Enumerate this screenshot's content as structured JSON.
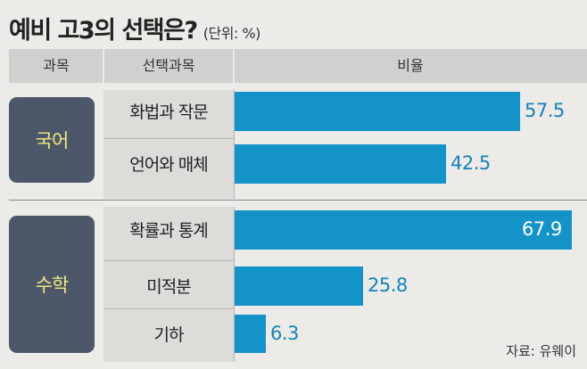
{
  "title": "예비 고3의 선택은?",
  "unit": "(단위: %)",
  "headers": {
    "category": "과목",
    "subject": "선택과목",
    "ratio": "비율"
  },
  "source": "자료: 유웨이",
  "chart_data": {
    "type": "bar",
    "orientation": "horizontal",
    "title": "예비 고3의 선택은?",
    "unit": "%",
    "xlim": [
      0,
      67.9
    ],
    "groups": [
      {
        "name": "국어",
        "categories": [
          "화법과 작문",
          "언어와 매체"
        ],
        "values": [
          57.5,
          42.5
        ]
      },
      {
        "name": "수학",
        "categories": [
          "확률과 통계",
          "미적분",
          "기하"
        ],
        "values": [
          67.9,
          25.8,
          6.3
        ]
      }
    ],
    "colors": {
      "bar": "#1493c8",
      "category_box": "#4c586a",
      "category_text": "#f3e77a"
    }
  }
}
